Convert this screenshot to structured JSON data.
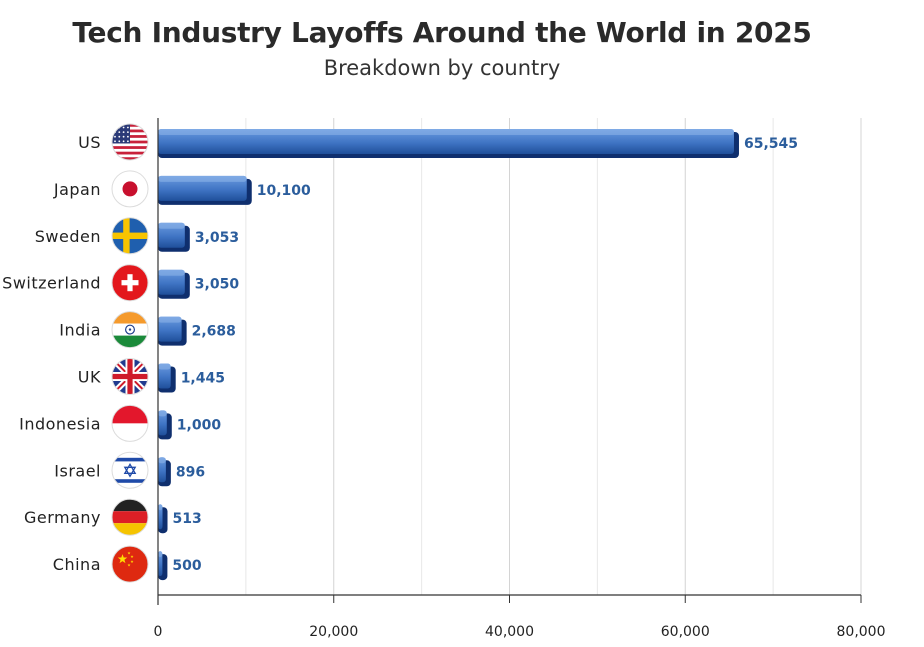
{
  "chart_data": {
    "type": "bar",
    "orientation": "horizontal",
    "title": "Tech Industry Layoffs Around the World in 2025",
    "subtitle": "Breakdown by country",
    "categories": [
      "US",
      "Japan",
      "Sweden",
      "Switzerland",
      "India",
      "UK",
      "Indonesia",
      "Israel",
      "Germany",
      "China"
    ],
    "values": [
      65545,
      10100,
      3053,
      3050,
      2688,
      1445,
      1000,
      896,
      513,
      500
    ],
    "value_labels": [
      "65,545",
      "10,100",
      "3,053",
      "3,050",
      "2,688",
      "1,445",
      "1,000",
      "896",
      "513",
      "500"
    ],
    "flag_icons": [
      "us-flag-icon",
      "japan-flag-icon",
      "sweden-flag-icon",
      "switzerland-flag-icon",
      "india-flag-icon",
      "uk-flag-icon",
      "indonesia-flag-icon",
      "israel-flag-icon",
      "germany-flag-icon",
      "china-flag-icon"
    ],
    "xlim": [
      0,
      80000
    ],
    "xticks": [
      0,
      20000,
      40000,
      60000,
      80000
    ],
    "xtick_labels": [
      "0",
      "20,000",
      "40,000",
      "60,000",
      "80,000"
    ],
    "grid": true,
    "colors": {
      "bar_light": "#5b8fd6",
      "bar_dark": "#1f4f9a",
      "bar_shadow": "#0f2f6e",
      "value_label": "#2b5d9c"
    }
  }
}
